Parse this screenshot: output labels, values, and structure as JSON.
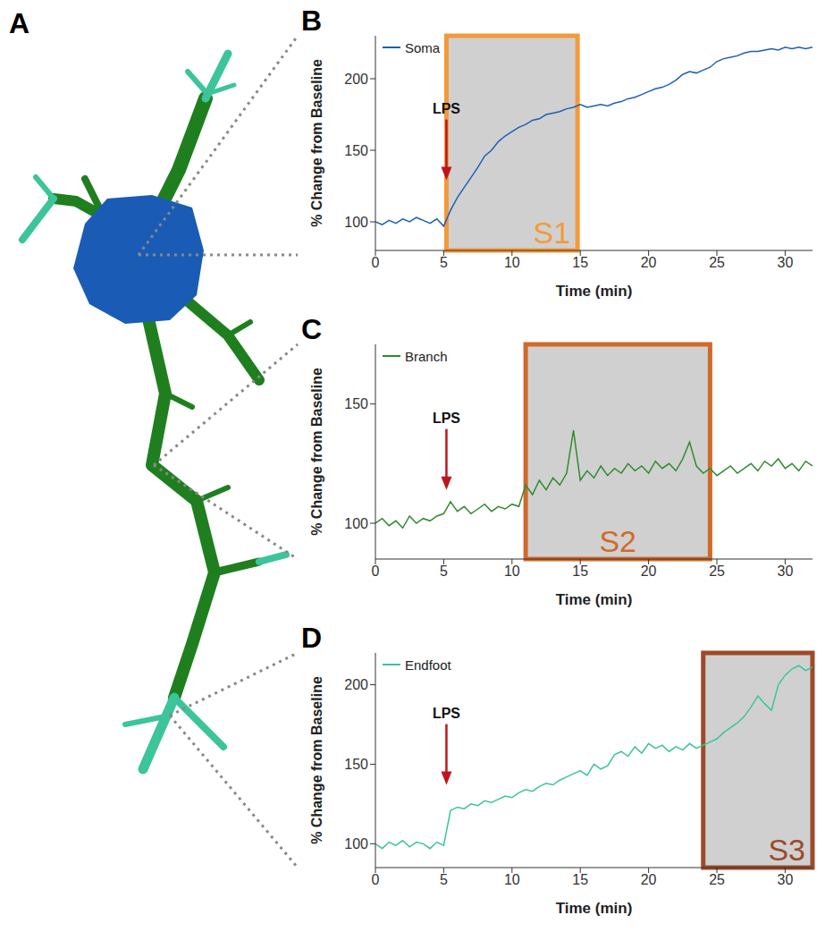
{
  "diagram": {
    "panel_label": "A"
  },
  "chart_data": [
    {
      "type": "line",
      "panel_label": "B",
      "x_label": "Time (min)",
      "y_label": "% Change from Baseline",
      "xlim": [
        0,
        32
      ],
      "xticks": [
        0,
        5,
        10,
        15,
        20,
        25,
        30
      ],
      "ylim": [
        80,
        230
      ],
      "yticks": [
        100,
        150,
        200
      ],
      "grid": false,
      "legend": "upper left",
      "x": [
        0,
        0.5,
        1,
        1.5,
        2,
        2.5,
        3,
        3.5,
        4,
        4.5,
        5,
        5.5,
        6,
        6.5,
        7,
        7.5,
        8,
        8.5,
        9,
        9.5,
        10,
        10.5,
        11,
        11.5,
        12,
        12.5,
        13,
        13.5,
        14,
        14.5,
        15,
        15.5,
        16,
        16.5,
        17,
        17.5,
        18,
        18.5,
        19,
        19.5,
        20,
        20.5,
        21,
        21.5,
        22,
        22.5,
        23,
        23.5,
        24,
        24.5,
        25,
        25.5,
        26,
        26.5,
        27,
        27.5,
        28,
        28.5,
        29,
        29.5,
        30,
        30.5,
        31,
        31.5,
        32
      ],
      "series": [
        {
          "name": "Soma",
          "color": "#1f5fb4",
          "values": [
            100,
            98,
            101,
            99,
            102,
            100,
            103,
            101,
            99,
            102,
            97,
            108,
            117,
            124,
            131,
            138,
            146,
            150,
            156,
            160,
            163,
            166,
            168,
            171,
            172,
            175,
            176,
            177,
            179,
            180,
            182,
            180,
            181,
            182,
            181,
            183,
            184,
            186,
            187,
            189,
            191,
            193,
            194,
            196,
            199,
            203,
            205,
            204,
            206,
            208,
            212,
            214,
            215,
            216,
            218,
            219,
            219,
            220,
            221,
            220,
            222,
            221,
            222,
            221,
            222
          ]
        }
      ],
      "annotations": [
        {
          "text": "LPS",
          "x": 5.2,
          "y": 129,
          "color": "#c0141c"
        }
      ],
      "regions": [
        {
          "label": "S1",
          "x": [
            5.2,
            14.8
          ],
          "color": "#f39a3a"
        }
      ]
    },
    {
      "type": "line",
      "panel_label": "C",
      "x_label": "Time (min)",
      "y_label": "% Change from Baseline",
      "xlim": [
        0,
        32
      ],
      "xticks": [
        0,
        5,
        10,
        15,
        20,
        25,
        30
      ],
      "ylim": [
        85,
        175
      ],
      "yticks": [
        100,
        150
      ],
      "grid": false,
      "legend": "upper left",
      "x": [
        0,
        0.5,
        1,
        1.5,
        2,
        2.5,
        3,
        3.5,
        4,
        4.5,
        5,
        5.5,
        6,
        6.5,
        7,
        7.5,
        8,
        8.5,
        9,
        9.5,
        10,
        10.5,
        11,
        11.5,
        12,
        12.5,
        13,
        13.5,
        14,
        14.5,
        15,
        15.5,
        16,
        16.5,
        17,
        17.5,
        18,
        18.5,
        19,
        19.5,
        20,
        20.5,
        21,
        21.5,
        22,
        22.5,
        23,
        23.5,
        24,
        24.5,
        25,
        25.5,
        26,
        26.5,
        27,
        27.5,
        28,
        28.5,
        29,
        29.5,
        30,
        30.5,
        31,
        31.5,
        32
      ],
      "series": [
        {
          "name": "Branch",
          "color": "#2e8b2e",
          "values": [
            100,
            102,
            99,
            101,
            98,
            103,
            100,
            102,
            101,
            103,
            104,
            109,
            105,
            107,
            104,
            106,
            108,
            105,
            107,
            106,
            108,
            107,
            116,
            112,
            118,
            114,
            119,
            116,
            121,
            139,
            118,
            122,
            119,
            124,
            120,
            123,
            121,
            125,
            122,
            124,
            121,
            126,
            123,
            125,
            122,
            127,
            134,
            124,
            121,
            123,
            120,
            122,
            124,
            121,
            123,
            125,
            122,
            126,
            124,
            127,
            123,
            125,
            122,
            126,
            124
          ]
        }
      ],
      "annotations": [
        {
          "text": "LPS",
          "x": 5.2,
          "y": 114,
          "color": "#c0141c"
        }
      ],
      "regions": [
        {
          "label": "S2",
          "x": [
            11,
            24.5
          ],
          "color": "#d2692a"
        }
      ]
    },
    {
      "type": "line",
      "panel_label": "D",
      "x_label": "Time (min)",
      "y_label": "% Change from Baseline",
      "xlim": [
        0,
        32
      ],
      "xticks": [
        0,
        5,
        10,
        15,
        20,
        25,
        30
      ],
      "ylim": [
        85,
        220
      ],
      "yticks": [
        100,
        150,
        200
      ],
      "grid": false,
      "legend": "upper left",
      "x": [
        0,
        0.5,
        1,
        1.5,
        2,
        2.5,
        3,
        3.5,
        4,
        4.5,
        5,
        5.5,
        6,
        6.5,
        7,
        7.5,
        8,
        8.5,
        9,
        9.5,
        10,
        10.5,
        11,
        11.5,
        12,
        12.5,
        13,
        13.5,
        14,
        14.5,
        15,
        15.5,
        16,
        16.5,
        17,
        17.5,
        18,
        18.5,
        19,
        19.5,
        20,
        20.5,
        21,
        21.5,
        22,
        22.5,
        23,
        23.5,
        24,
        24.5,
        25,
        25.5,
        26,
        26.5,
        27,
        27.5,
        28,
        28.5,
        29,
        29.5,
        30,
        30.5,
        31,
        31.5,
        32
      ],
      "series": [
        {
          "name": "Endfoot",
          "color": "#3cc49b",
          "values": [
            100,
            97,
            101,
            99,
            102,
            98,
            101,
            100,
            97,
            101,
            99,
            121,
            123,
            122,
            125,
            124,
            127,
            126,
            128,
            130,
            129,
            132,
            134,
            133,
            136,
            138,
            137,
            140,
            142,
            144,
            146,
            143,
            150,
            147,
            149,
            156,
            158,
            155,
            161,
            157,
            163,
            160,
            162,
            158,
            161,
            159,
            163,
            160,
            162,
            164,
            166,
            170,
            173,
            176,
            180,
            186,
            193,
            188,
            184,
            200,
            206,
            210,
            212,
            209,
            211
          ]
        }
      ],
      "annotations": [
        {
          "text": "LPS",
          "x": 5.2,
          "y": 137,
          "color": "#c0141c"
        }
      ],
      "regions": [
        {
          "label": "S3",
          "x": [
            24,
            32
          ],
          "color": "#9c4a2a"
        }
      ]
    }
  ]
}
